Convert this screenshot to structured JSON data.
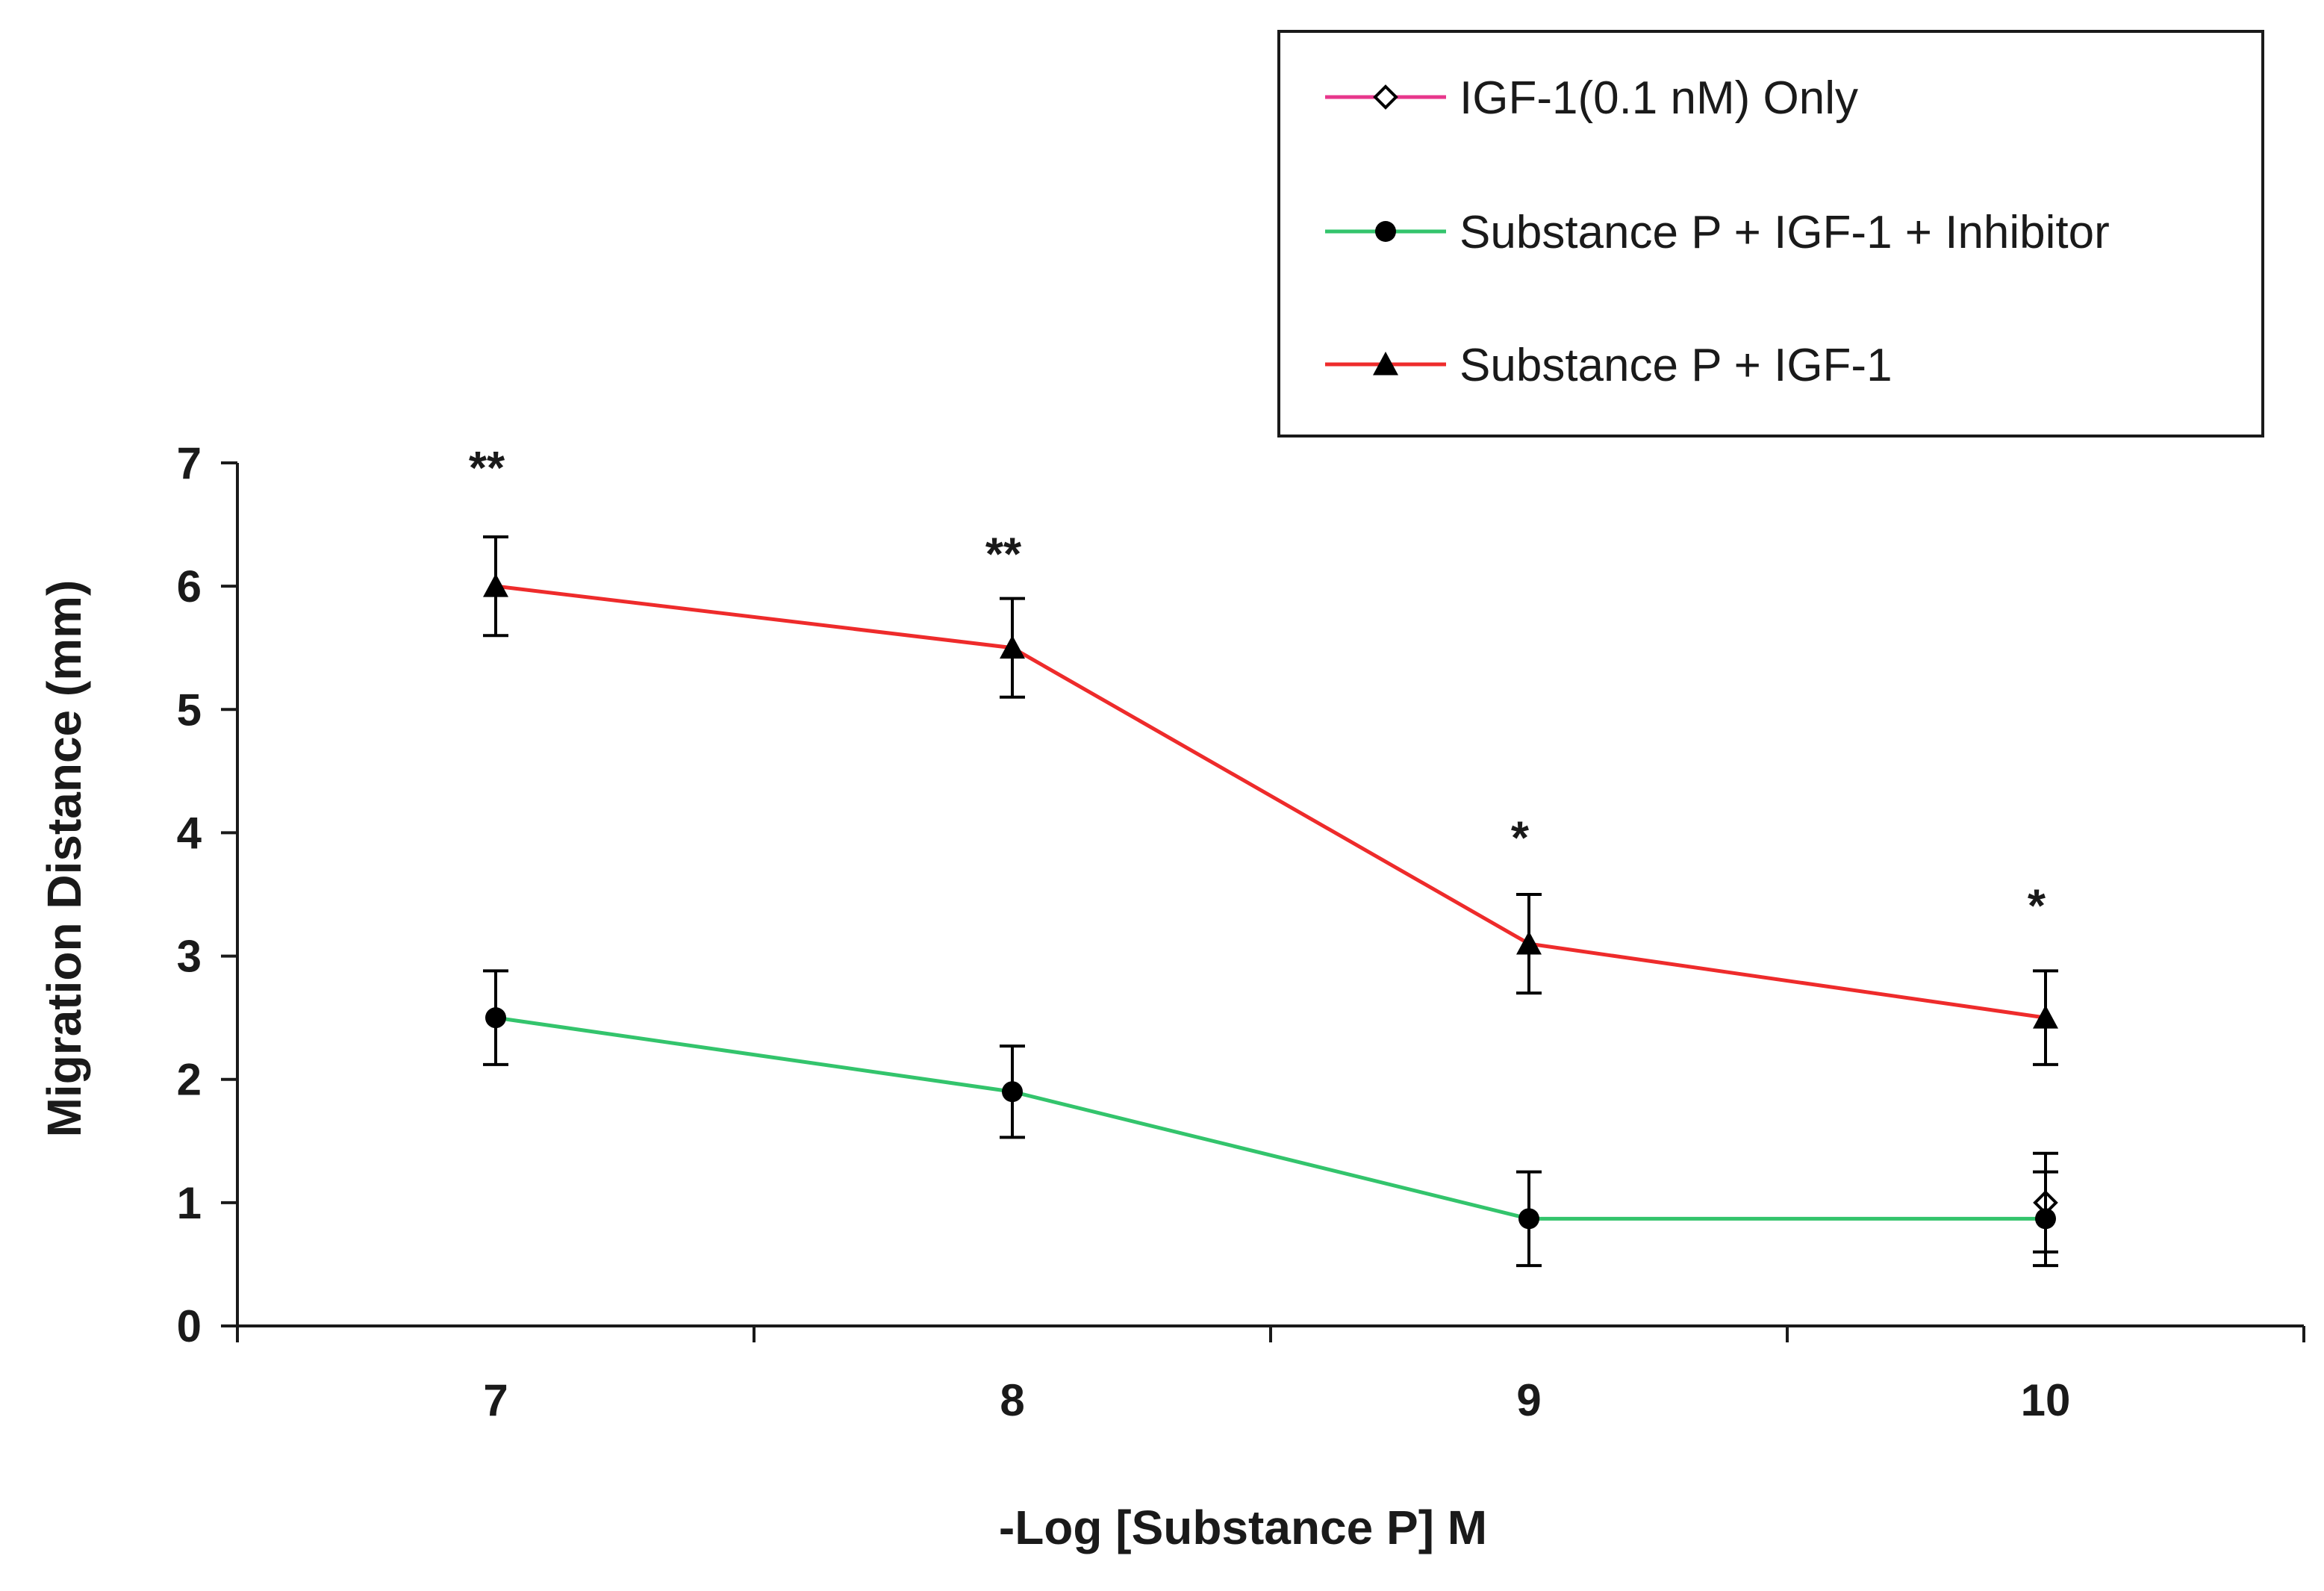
{
  "chart_data": {
    "type": "line",
    "title": "",
    "xlabel": "-Log [Substance P] M",
    "ylabel": "Migration Distance (mm)",
    "categories": [
      "7",
      "8",
      "9",
      "10"
    ],
    "xlim": [
      6.5,
      10.5
    ],
    "ylim": [
      0,
      7
    ],
    "yticks": [
      "0",
      "1",
      "2",
      "3",
      "4",
      "5",
      "6",
      "7"
    ],
    "grid": false,
    "legend_position": "top-right",
    "series": [
      {
        "name": "IGF-1(0.1 nM) Only",
        "color": "#e8378c",
        "marker": "open-diamond",
        "x": [
          10
        ],
        "values": [
          1.0
        ],
        "errors": [
          0.4
        ]
      },
      {
        "name": "Substance P + IGF-1 + Inhibitor",
        "color": "#33c46c",
        "marker": "filled-circle",
        "x": [
          7,
          8,
          9,
          10
        ],
        "values": [
          2.5,
          1.9,
          0.87,
          0.87
        ],
        "errors": [
          0.38,
          0.37,
          0.38,
          0.38
        ]
      },
      {
        "name": "Substance P + IGF-1",
        "color": "#ee2b2b",
        "marker": "filled-triangle",
        "x": [
          7,
          8,
          9,
          10
        ],
        "values": [
          6.0,
          5.5,
          3.1,
          2.5
        ],
        "errors": [
          0.4,
          0.4,
          0.4,
          0.38
        ]
      }
    ],
    "annotations": [
      {
        "x": 7,
        "y": 7.0,
        "text": "**"
      },
      {
        "x": 8,
        "y": 6.3,
        "text": "**"
      },
      {
        "x": 9,
        "y": 4.0,
        "text": "*"
      },
      {
        "x": 10,
        "y": 3.45,
        "text": "*"
      }
    ],
    "marker_color": "#000000",
    "axis_color": "#1a1a1a"
  }
}
